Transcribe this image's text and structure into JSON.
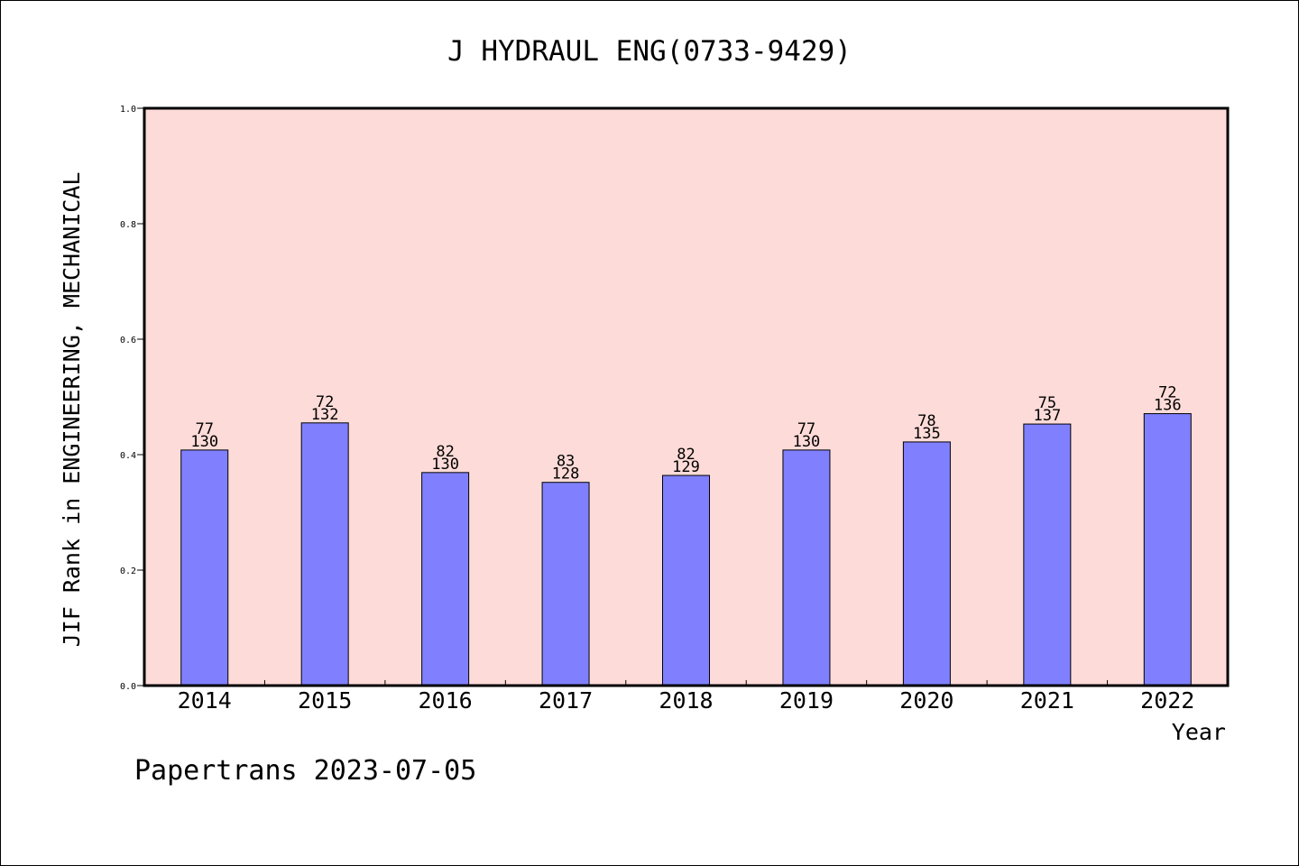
{
  "chart_data": {
    "type": "bar",
    "title": "J HYDRAUL ENG(0733-9429)",
    "xlabel": "Year",
    "ylabel": "JIF Rank in ENGINEERING, MECHANICAL",
    "footer": "Papertrans 2023-07-05",
    "ylim": [
      0,
      1.0
    ],
    "yticks": [
      "0.0",
      "0.2",
      "0.4",
      "0.6",
      "0.8",
      "1.0"
    ],
    "categories": [
      "2014",
      "2015",
      "2016",
      "2017",
      "2018",
      "2019",
      "2020",
      "2021",
      "2022"
    ],
    "values": [
      0.408,
      0.455,
      0.369,
      0.352,
      0.364,
      0.408,
      0.422,
      0.453,
      0.471
    ],
    "rank": [
      "77",
      "72",
      "82",
      "83",
      "82",
      "77",
      "78",
      "75",
      "72"
    ],
    "total": [
      "130",
      "132",
      "130",
      "128",
      "129",
      "130",
      "135",
      "137",
      "136"
    ],
    "grid": false,
    "legend": "none",
    "colors": {
      "plot_background": "#fddbd8",
      "bar_fill": "#8080ff",
      "bar_stroke": "#000000",
      "axis": "#000000",
      "text": "#000000"
    }
  }
}
